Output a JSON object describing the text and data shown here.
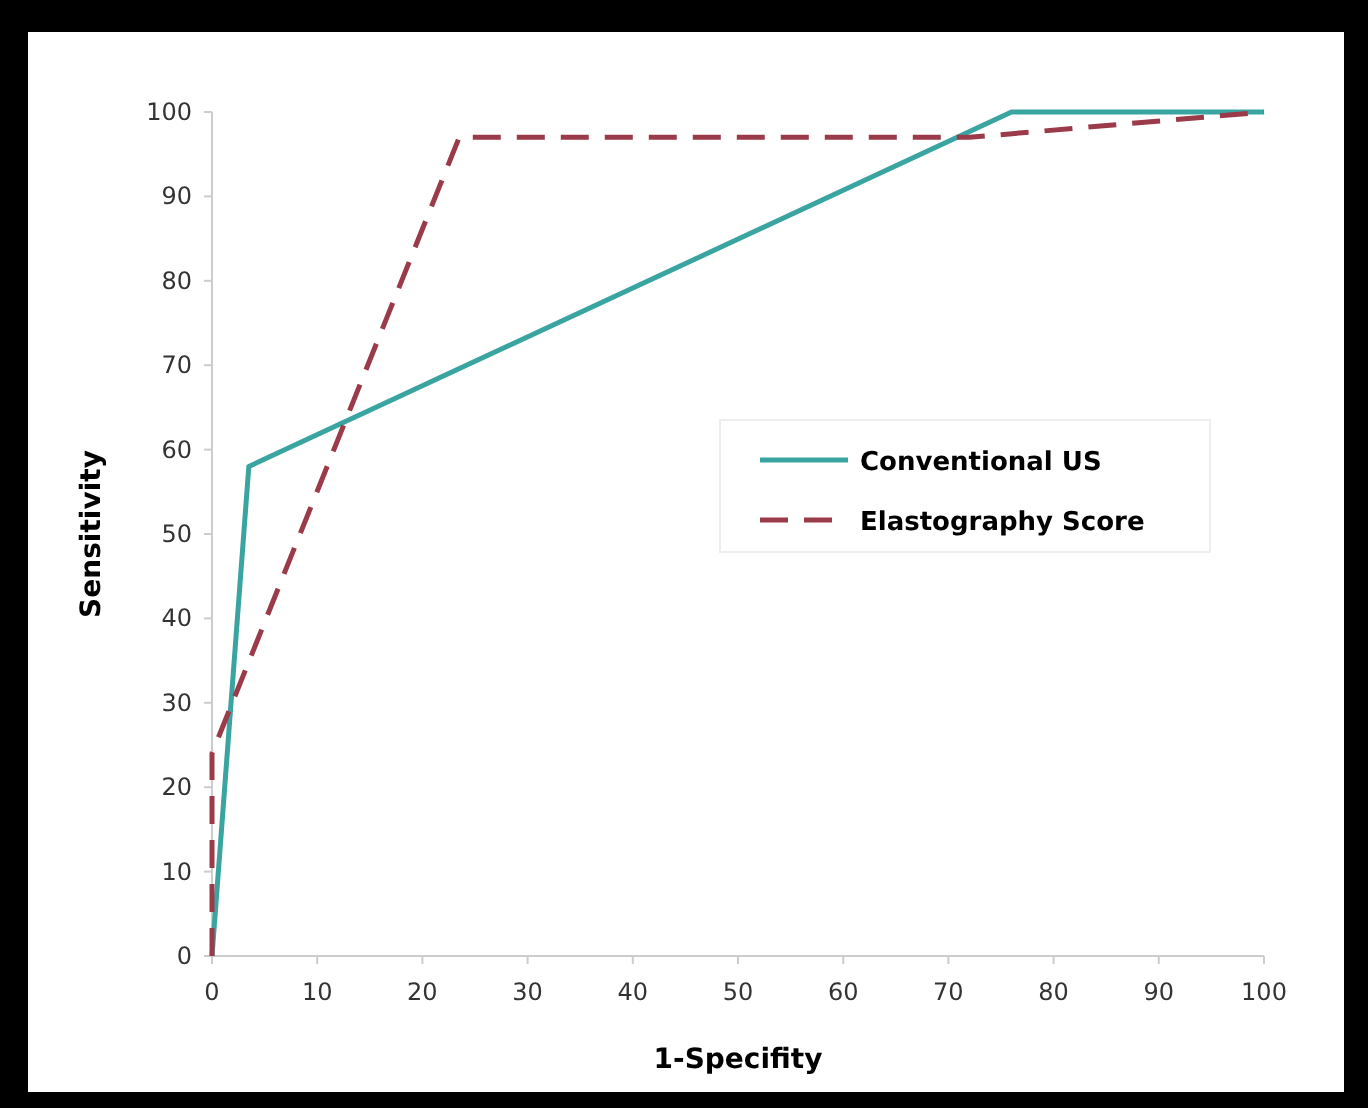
{
  "chart_data": {
    "type": "line",
    "xlabel": "1-Specifity",
    "ylabel": "Sensitivity",
    "xlim": [
      0,
      100
    ],
    "ylim": [
      0,
      100
    ],
    "xticks": [
      0,
      10,
      20,
      30,
      40,
      50,
      60,
      70,
      80,
      90,
      100
    ],
    "yticks": [
      0,
      10,
      20,
      30,
      40,
      50,
      60,
      70,
      80,
      90,
      100
    ],
    "grid": false,
    "legend": "right",
    "marker": "none",
    "series": [
      {
        "name": "Conventional US",
        "color": "#3aa5a0",
        "line_style": "solid",
        "x": [
          0,
          3.5,
          76,
          100
        ],
        "values": [
          0,
          58,
          100,
          100
        ]
      },
      {
        "name": "Elastography Score",
        "color": "#9b3a48",
        "line_style": "dashed",
        "x": [
          0,
          0,
          23.5,
          72,
          100
        ],
        "values": [
          0,
          24,
          97,
          97,
          100
        ]
      }
    ]
  }
}
